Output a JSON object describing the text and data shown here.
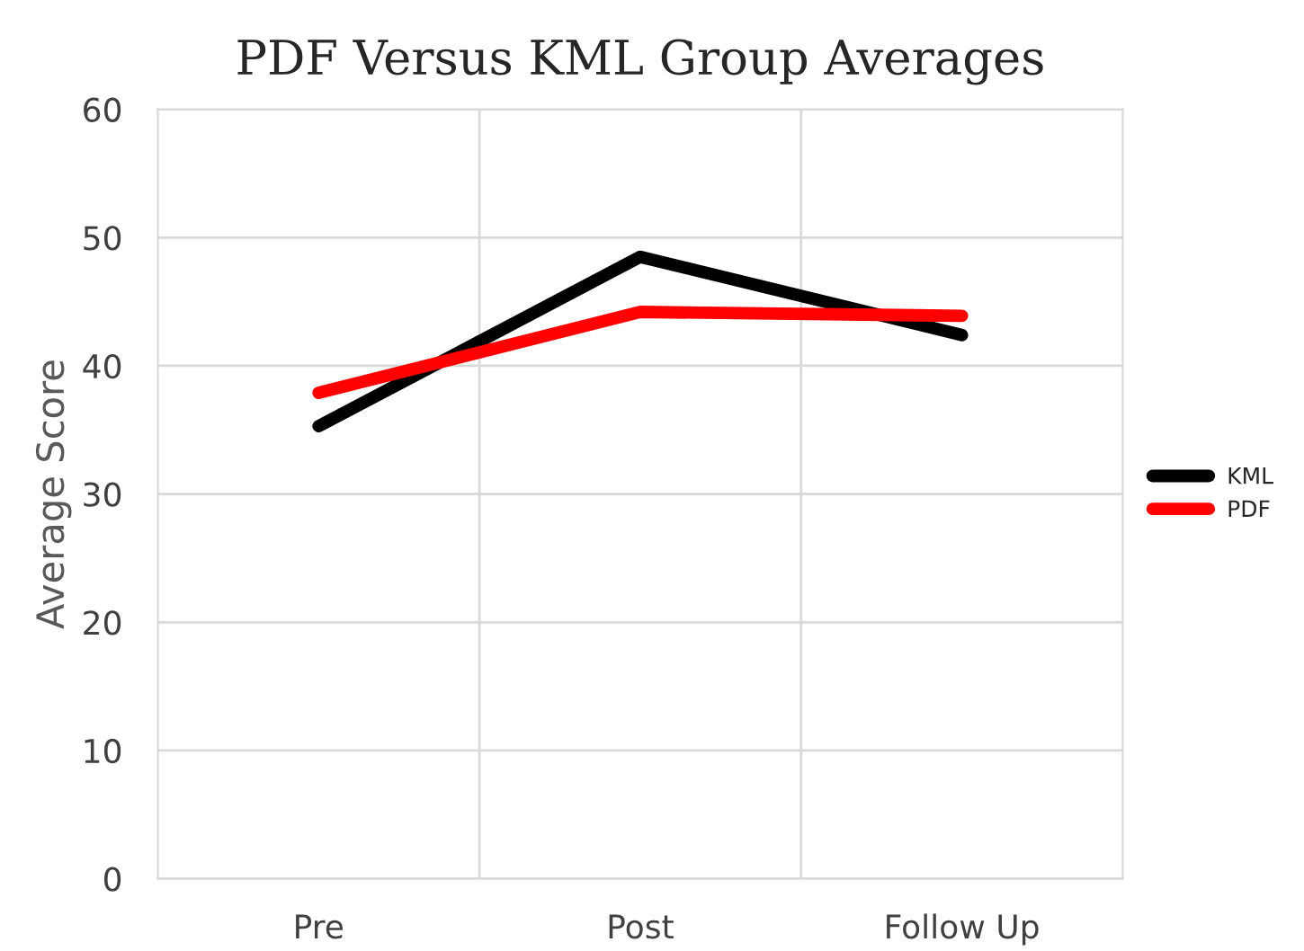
{
  "chart_data": {
    "type": "line",
    "title": "PDF Versus KML Group Averages",
    "ylabel": "Average Score",
    "categories": [
      "Pre",
      "Post",
      "Follow Up"
    ],
    "series": [
      {
        "name": "KML",
        "color": "#000000",
        "values": [
          35.3,
          48.5,
          42.4
        ]
      },
      {
        "name": "PDF",
        "color": "#ff0000",
        "values": [
          37.9,
          44.2,
          43.9
        ]
      }
    ],
    "ylim": [
      0,
      60
    ],
    "yticks": [
      0,
      10,
      20,
      30,
      40,
      50,
      60
    ],
    "grid": true,
    "legend": "right",
    "marker": "none",
    "line_style": "solid"
  }
}
